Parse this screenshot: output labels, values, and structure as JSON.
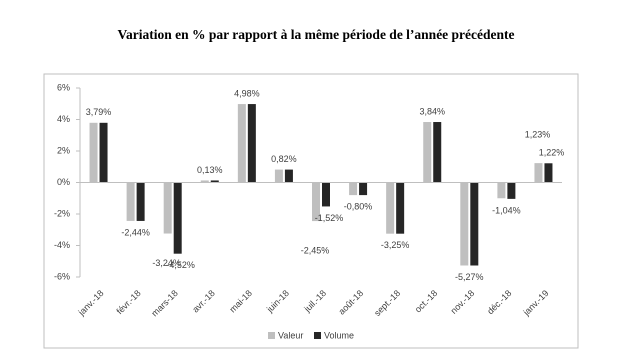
{
  "chart_data": {
    "type": "bar",
    "title": "Variation en % par rapport à la même période de l’année précédente",
    "categories": [
      "janv.-18",
      "févr.-18",
      "mars-18",
      "avr.-18",
      "mai-18",
      "juin-18",
      "juil.-18",
      "août-18",
      "sept.-18",
      "oct.-18",
      "nov.-18",
      "déc.-18",
      "janv.-19"
    ],
    "series": [
      {
        "name": "Valeur",
        "color": "#bfbfbf",
        "values": [
          3.79,
          -2.44,
          -3.24,
          0.13,
          4.98,
          0.82,
          -2.45,
          -0.8,
          -3.25,
          3.84,
          -5.27,
          -1.0,
          1.23
        ],
        "value_labels": [
          null,
          null,
          "-3,24%",
          null,
          null,
          null,
          "-2,45%",
          null,
          null,
          null,
          null,
          null,
          "1,23%"
        ]
      },
      {
        "name": "Volume",
        "color": "#262626",
        "values": [
          3.79,
          -2.44,
          -4.52,
          0.13,
          4.98,
          0.82,
          -1.52,
          -0.8,
          -3.25,
          3.84,
          -5.27,
          -1.04,
          1.22
        ],
        "value_labels": [
          "3,79%",
          "-2,44%",
          "-4,52%",
          "0,13%",
          "4,98%",
          "0,82%",
          "-1,52%",
          "-0,80%",
          "-3,25%",
          "3,84%",
          "-5,27%",
          "-1,04%",
          "1,22%"
        ]
      }
    ],
    "ylim": [
      -6,
      6
    ],
    "yticks": [
      {
        "value": -6,
        "label": "-6%"
      },
      {
        "value": -4,
        "label": "-4%"
      },
      {
        "value": -2,
        "label": "-2%"
      },
      {
        "value": 0,
        "label": "0%"
      },
      {
        "value": 2,
        "label": "2%"
      },
      {
        "value": 4,
        "label": "4%"
      },
      {
        "value": 6,
        "label": "6%"
      }
    ],
    "grid": false,
    "legend": "bottom"
  }
}
